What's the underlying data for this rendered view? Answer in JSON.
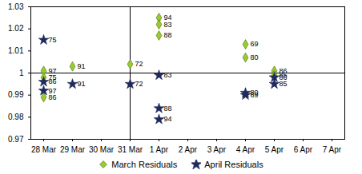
{
  "chart_data": {
    "type": "scatter",
    "x": [
      "28 Mar",
      "29 Mar",
      "30 Mar",
      "31 Mar",
      "1 Apr",
      "2 Apr",
      "3 Apr",
      "4 Apr",
      "5 Apr",
      "6 Apr",
      "7 Apr"
    ],
    "ylim": [
      0.97,
      1.03
    ],
    "yticks": [
      0.97,
      0.98,
      0.99,
      1,
      1.01,
      1.02,
      1.03
    ],
    "grid": false,
    "legend": "bottom",
    "hlines": [
      1
    ],
    "vlines": [
      "31 Mar"
    ],
    "series": [
      {
        "name": "March Residuals",
        "color": "#99cc33",
        "marker": "diamond",
        "x": [
          "28 Mar",
          "28 Mar",
          "28 Mar",
          "29 Mar",
          "31 Mar",
          "1 Apr",
          "1 Apr",
          "1 Apr",
          "4 Apr",
          "4 Apr",
          "5 Apr",
          "5 Apr"
        ],
        "values": [
          1.001,
          0.998,
          0.989,
          1.003,
          1.004,
          1.025,
          1.022,
          1.017,
          1.013,
          1.007,
          1.001,
          0.999
        ],
        "point_labels": [
          "97",
          "75",
          "86",
          "91",
          "72",
          "94",
          "83",
          "88",
          "69",
          "80",
          "86",
          "85"
        ]
      },
      {
        "name": "April Residuals",
        "color": "#1f2a5c",
        "marker": "star",
        "x": [
          "28 Mar",
          "28 Mar",
          "28 Mar",
          "29 Mar",
          "31 Mar",
          "1 Apr",
          "1 Apr",
          "1 Apr",
          "4 Apr",
          "4 Apr",
          "5 Apr",
          "5 Apr"
        ],
        "values": [
          1.015,
          0.996,
          0.992,
          0.995,
          0.995,
          0.999,
          0.984,
          0.979,
          0.991,
          0.99,
          0.998,
          0.995
        ],
        "point_labels": [
          "75",
          "86",
          "97",
          "91",
          "72",
          "83",
          "88",
          "94",
          "80",
          "69",
          "86",
          "85"
        ]
      }
    ]
  }
}
